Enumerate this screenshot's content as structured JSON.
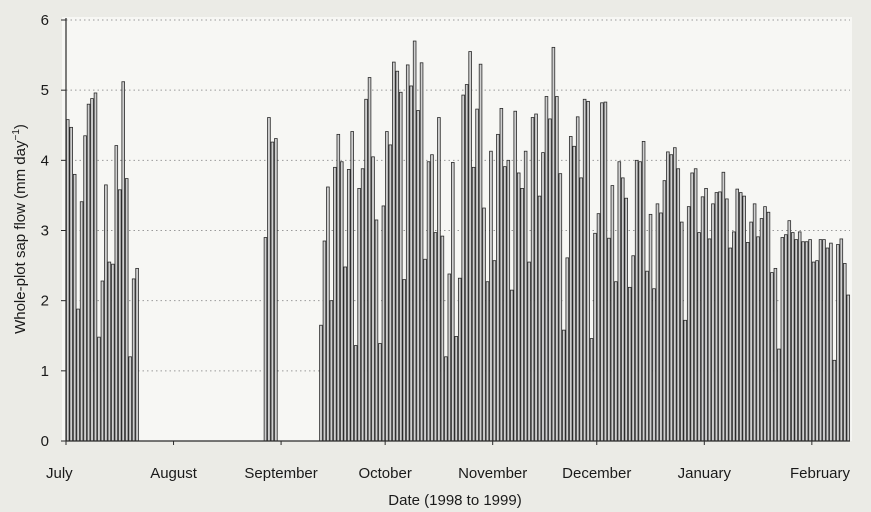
{
  "chart_data": {
    "type": "bar",
    "xlabel": "Date (1998 to 1999)",
    "ylabel_main": "Whole-plot sap flow (mm day",
    "ylabel_sup": "−1",
    "ylabel_close": ")",
    "ylim": [
      0,
      6
    ],
    "yticks": [
      "0",
      "1",
      "2",
      "3",
      "4",
      "5",
      "6"
    ],
    "grid": "horizontal dotted at 1-6",
    "month_labels": [
      "July",
      "August",
      "September",
      "October",
      "November",
      "December",
      "January",
      "February"
    ],
    "start_day": 0,
    "values": [
      4.58,
      4.47,
      3.8,
      1.88,
      3.41,
      4.35,
      4.8,
      4.88,
      4.96,
      1.48,
      2.28,
      3.65,
      2.55,
      2.52,
      4.21,
      3.58,
      5.12,
      3.74,
      1.2,
      2.31,
      2.46,
      null,
      null,
      null,
      null,
      null,
      null,
      null,
      null,
      null,
      null,
      null,
      null,
      null,
      null,
      null,
      null,
      null,
      null,
      null,
      null,
      null,
      null,
      null,
      null,
      null,
      null,
      null,
      null,
      null,
      null,
      null,
      null,
      null,
      null,
      null,
      null,
      2.9,
      4.61,
      4.26,
      4.31,
      null,
      null,
      null,
      null,
      null,
      null,
      null,
      null,
      null,
      null,
      null,
      null,
      1.65,
      2.85,
      3.62,
      2.0,
      3.9,
      4.37,
      3.98,
      2.48,
      3.87,
      4.41,
      1.36,
      3.6,
      3.88,
      4.87,
      5.18,
      4.05,
      3.15,
      1.39,
      3.35,
      4.41,
      4.22,
      5.4,
      5.27,
      4.97,
      2.3,
      5.36,
      5.06,
      5.7,
      4.71,
      5.39,
      2.59,
      3.98,
      4.08,
      2.97,
      4.61,
      2.92,
      1.2,
      2.38,
      3.97,
      1.49,
      2.32,
      4.93,
      5.08,
      5.55,
      3.9,
      4.73,
      5.37,
      3.32,
      2.27,
      4.13,
      2.57,
      4.37,
      4.74,
      3.91,
      4.0,
      2.15,
      4.7,
      3.82,
      3.6,
      4.13,
      2.55,
      4.61,
      4.66,
      3.49,
      4.11,
      4.91,
      4.59,
      5.61,
      4.91,
      3.81,
      1.58,
      2.61,
      4.34,
      4.2,
      4.62,
      3.75,
      4.87,
      4.84,
      1.46,
      2.96,
      3.24,
      4.82,
      4.83,
      2.89,
      3.64,
      2.27,
      3.98,
      3.75,
      3.46,
      2.19,
      2.64,
      4.0,
      3.98,
      4.27,
      2.42,
      3.23,
      2.17,
      3.38,
      3.25,
      3.71,
      4.12,
      4.08,
      4.18,
      3.88,
      3.12,
      1.72,
      3.34,
      3.82,
      3.88,
      2.97,
      3.48,
      3.6,
      2.88,
      3.38,
      3.54,
      3.55,
      3.83,
      3.45,
      2.75,
      2.98,
      3.59,
      3.54,
      3.49,
      2.83,
      3.12,
      3.38,
      2.91,
      3.17,
      3.34,
      3.26,
      2.4,
      2.46,
      1.31,
      2.9,
      2.94,
      3.14,
      2.97,
      2.87,
      2.98,
      2.84,
      2.84,
      2.87,
      2.55,
      2.57,
      2.87,
      2.87,
      2.75,
      2.82,
      1.15,
      2.8,
      2.88,
      2.53,
      2.08
    ]
  }
}
